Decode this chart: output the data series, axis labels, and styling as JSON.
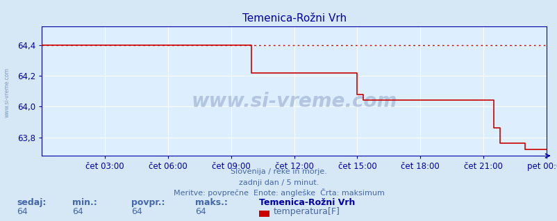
{
  "title": "Temenica-Rožni Vrh",
  "bg_color": "#d6e8f5",
  "plot_bg_color": "#ddeeff",
  "line_color": "#cc0000",
  "dashed_color": "#cc0000",
  "axis_color": "#0000aa",
  "grid_color": "#ffffff",
  "text_color": "#4466aa",
  "watermark": "www.si-vreme.com",
  "subtitle1": "Slovenija / reke in morje.",
  "subtitle2": "zadnji dan / 5 minut.",
  "subtitle3": "Meritve: povprečne  Enote: angleške  Črta: maksimum",
  "legend_station": "Temenica-Rožni Vrh",
  "legend_label": "temperatura[F]",
  "stats_labels": [
    "sedaj:",
    "min.:",
    "povpr.:",
    "maks.:"
  ],
  "stats_values": [
    "64",
    "64",
    "64",
    "64"
  ],
  "x_ticks_labels": [
    "čet 03:00",
    "čet 06:00",
    "čet 09:00",
    "čet 12:00",
    "čet 15:00",
    "čet 18:00",
    "čet 21:00",
    "pet 00:00"
  ],
  "x_ticks_pos": [
    0.125,
    0.25,
    0.375,
    0.5,
    0.625,
    0.75,
    0.875,
    1.0
  ],
  "ylim": [
    63.68,
    64.52
  ],
  "yticks": [
    63.8,
    64.0,
    64.2,
    64.4
  ],
  "ytick_labels": [
    "63,8",
    "64,0",
    "64,2",
    "64,4"
  ],
  "max_line_y": 64.4,
  "data_x": [
    0.0,
    0.415,
    0.415,
    0.625,
    0.625,
    0.637,
    0.637,
    0.895,
    0.895,
    0.908,
    0.908,
    0.958,
    0.958,
    1.0
  ],
  "data_y": [
    64.4,
    64.4,
    64.22,
    64.22,
    64.08,
    64.08,
    64.04,
    64.04,
    63.86,
    63.86,
    63.76,
    63.76,
    63.72,
    63.72
  ],
  "title_fontsize": 11,
  "tick_fontsize": 8.5,
  "subtitle_fontsize": 8,
  "stats_fontsize": 9
}
